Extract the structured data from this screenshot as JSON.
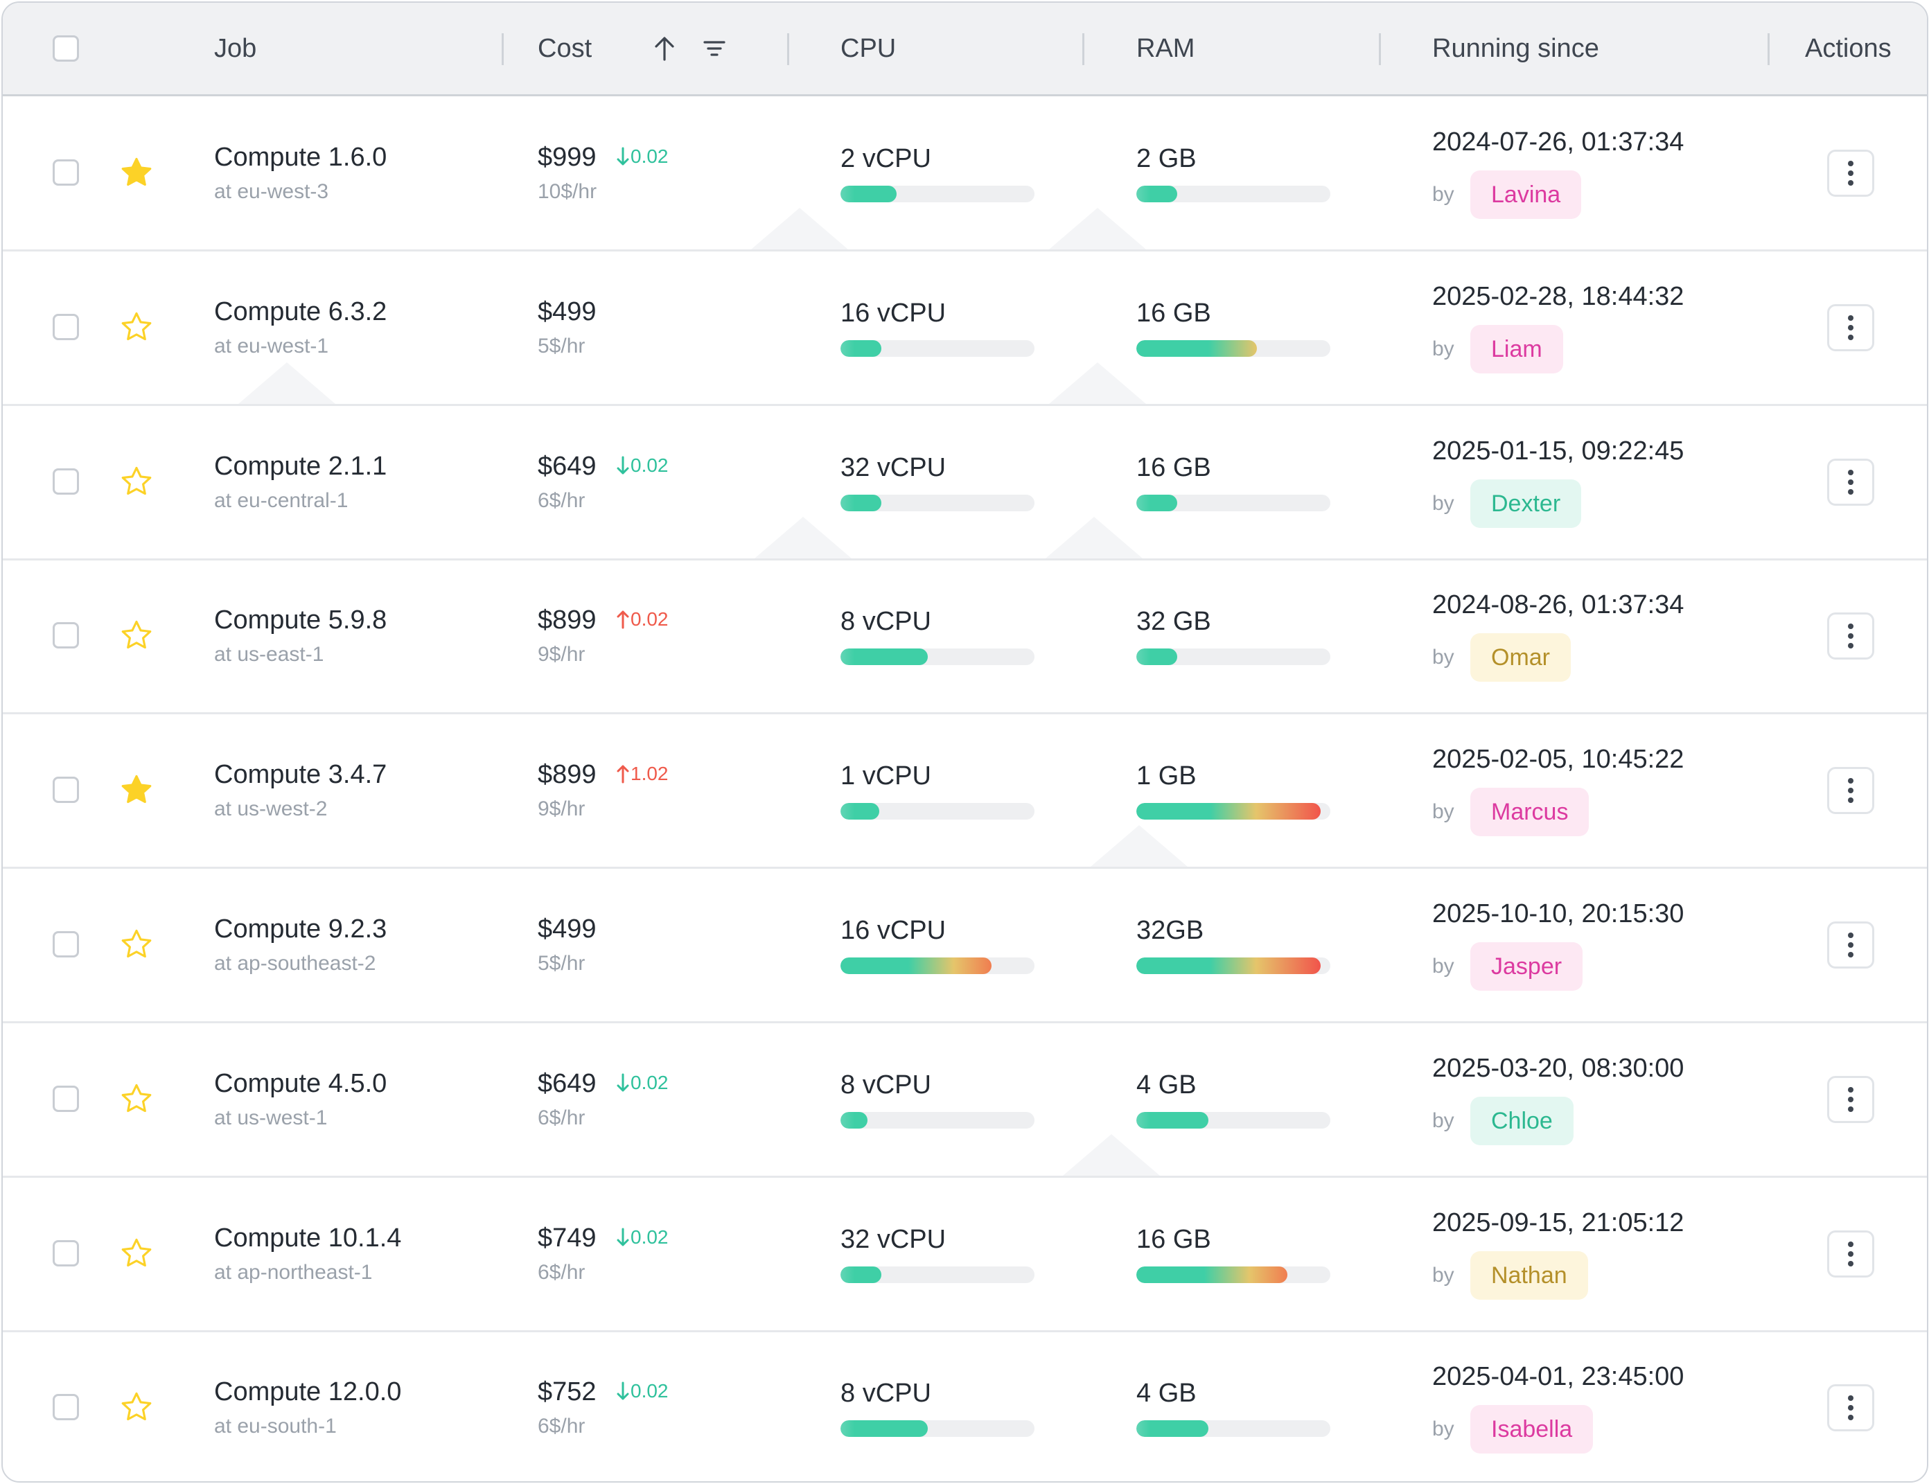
{
  "header": {
    "job": "Job",
    "cost": "Cost",
    "cpu": "CPU",
    "ram": "RAM",
    "running_since": "Running since",
    "actions": "Actions",
    "sort_icon": "arrow-up-icon",
    "filter_icon": "filter-icon"
  },
  "by_label": "by",
  "colors": {
    "bar_gradient": [
      "#3fcfa6",
      "#e5c56b",
      "#f1544b"
    ],
    "star_filled": "#fcd227",
    "star_outline": "#fcd227",
    "delta_down": "#2fc19c",
    "delta_up": "#ef5a4b"
  },
  "rows": [
    {
      "name": "Compute 1.6.0",
      "location": "at eu-west-3",
      "favorite": true,
      "cost": "$999",
      "rate": "10$/hr",
      "delta": "0.02",
      "delta_dir": "down",
      "cpu": "2 vCPU",
      "cpu_usage": 0.29,
      "ram": "2 GB",
      "ram_usage": 0.21,
      "since": "2024-07-26, 01:37:34",
      "user": "Lavina",
      "user_color": "pink"
    },
    {
      "name": "Compute 6.3.2",
      "location": "at eu-west-1",
      "favorite": false,
      "cost": "$499",
      "rate": "5$/hr",
      "delta": "",
      "delta_dir": "",
      "cpu": "16 vCPU",
      "cpu_usage": 0.21,
      "ram": "16 GB",
      "ram_usage": 0.62,
      "since": "2025-02-28, 18:44:32",
      "user": "Liam",
      "user_color": "pink"
    },
    {
      "name": "Compute 2.1.1",
      "location": "at eu-central-1",
      "favorite": false,
      "cost": "$649",
      "rate": "6$/hr",
      "delta": "0.02",
      "delta_dir": "down",
      "cpu": "32 vCPU",
      "cpu_usage": 0.21,
      "ram": "16 GB",
      "ram_usage": 0.21,
      "since": "2025-01-15, 09:22:45",
      "user": "Dexter",
      "user_color": "mint"
    },
    {
      "name": "Compute 5.9.8",
      "location": "at us-east-1",
      "favorite": false,
      "cost": "$899",
      "rate": "9$/hr",
      "delta": "0.02",
      "delta_dir": "up",
      "cpu": "8 vCPU",
      "cpu_usage": 0.45,
      "ram": "32 GB",
      "ram_usage": 0.21,
      "since": "2024-08-26, 01:37:34",
      "user": "Omar",
      "user_color": "amber"
    },
    {
      "name": "Compute 3.4.7",
      "location": "at us-west-2",
      "favorite": true,
      "cost": "$899",
      "rate": "9$/hr",
      "delta": "1.02",
      "delta_dir": "up",
      "cpu": "1 vCPU",
      "cpu_usage": 0.2,
      "ram": "1 GB",
      "ram_usage": 0.95,
      "since": "2025-02-05, 10:45:22",
      "user": "Marcus",
      "user_color": "pink"
    },
    {
      "name": "Compute 9.2.3",
      "location": "at ap-southeast-2",
      "favorite": false,
      "cost": "$499",
      "rate": "5$/hr",
      "delta": "",
      "delta_dir": "",
      "cpu": "16 vCPU",
      "cpu_usage": 0.78,
      "ram": "32GB",
      "ram_usage": 0.95,
      "since": "2025-10-10, 20:15:30",
      "user": "Jasper",
      "user_color": "pink"
    },
    {
      "name": "Compute 4.5.0",
      "location": "at us-west-1",
      "favorite": false,
      "cost": "$649",
      "rate": "6$/hr",
      "delta": "0.02",
      "delta_dir": "down",
      "cpu": "8 vCPU",
      "cpu_usage": 0.14,
      "ram": "4 GB",
      "ram_usage": 0.37,
      "since": "2025-03-20, 08:30:00",
      "user": "Chloe",
      "user_color": "mint"
    },
    {
      "name": "Compute 10.1.4",
      "location": "at ap-northeast-1",
      "favorite": false,
      "cost": "$749",
      "rate": "6$/hr",
      "delta": "0.02",
      "delta_dir": "down",
      "cpu": "32 vCPU",
      "cpu_usage": 0.21,
      "ram": "16 GB",
      "ram_usage": 0.78,
      "since": "2025-09-15, 21:05:12",
      "user": "Nathan",
      "user_color": "amber"
    },
    {
      "name": "Compute 12.0.0",
      "location": "at eu-south-1",
      "favorite": false,
      "cost": "$752",
      "rate": "6$/hr",
      "delta": "0.02",
      "delta_dir": "down",
      "cpu": "8 vCPU",
      "cpu_usage": 0.45,
      "ram": "4 GB",
      "ram_usage": 0.37,
      "since": "2025-04-01, 23:45:00",
      "user": "Isabella",
      "user_color": "pink"
    }
  ]
}
